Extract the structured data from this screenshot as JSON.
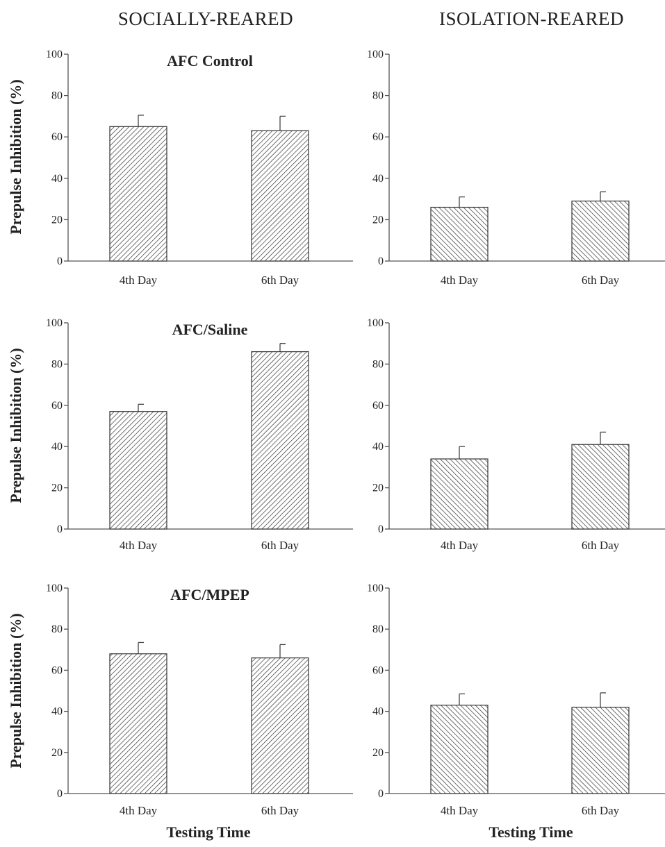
{
  "column_headers": [
    "SOCIALLY-REARED",
    "ISOLATION-REARED"
  ],
  "ylabel": "Prepulse Inhibition (%)",
  "xlabel": "Testing Time",
  "chart_data": [
    {
      "type": "bar",
      "title": "AFC Control",
      "categories": [
        "4th Day",
        "6th Day"
      ],
      "values": [
        65,
        63
      ],
      "errors": [
        5.5,
        7
      ],
      "ylim": [
        0,
        100
      ],
      "yticks": [
        0,
        20,
        40,
        60,
        80,
        100
      ],
      "hatch": "diagonal-up"
    },
    {
      "type": "bar",
      "title": "",
      "categories": [
        "4th Day",
        "6th Day"
      ],
      "values": [
        26,
        29
      ],
      "errors": [
        5,
        4.5
      ],
      "ylim": [
        0,
        100
      ],
      "yticks": [
        0,
        20,
        40,
        60,
        80,
        100
      ],
      "hatch": "diagonal-down"
    },
    {
      "type": "bar",
      "title": "AFC/Saline",
      "categories": [
        "4th Day",
        "6th Day"
      ],
      "values": [
        57,
        86
      ],
      "errors": [
        3.5,
        4
      ],
      "ylim": [
        0,
        100
      ],
      "yticks": [
        0,
        20,
        40,
        60,
        80,
        100
      ],
      "hatch": "diagonal-up"
    },
    {
      "type": "bar",
      "title": "",
      "categories": [
        "4th Day",
        "6th Day"
      ],
      "values": [
        34,
        41
      ],
      "errors": [
        6,
        6
      ],
      "ylim": [
        0,
        100
      ],
      "yticks": [
        0,
        20,
        40,
        60,
        80,
        100
      ],
      "hatch": "diagonal-down"
    },
    {
      "type": "bar",
      "title": "AFC/MPEP",
      "categories": [
        "4th Day",
        "6th Day"
      ],
      "values": [
        68,
        66
      ],
      "errors": [
        5.5,
        6.5
      ],
      "ylim": [
        0,
        100
      ],
      "yticks": [
        0,
        20,
        40,
        60,
        80,
        100
      ],
      "hatch": "diagonal-up"
    },
    {
      "type": "bar",
      "title": "",
      "categories": [
        "4th Day",
        "6th Day"
      ],
      "values": [
        43,
        42
      ],
      "errors": [
        5.5,
        7
      ],
      "ylim": [
        0,
        100
      ],
      "yticks": [
        0,
        20,
        40,
        60,
        80,
        100
      ],
      "hatch": "diagonal-down"
    }
  ]
}
